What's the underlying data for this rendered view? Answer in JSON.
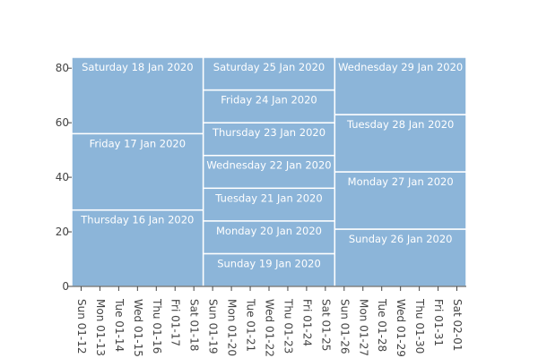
{
  "chart_data": {
    "type": "bar",
    "stacked": true,
    "grid": false,
    "categories": [
      "Sun 01-12",
      "Mon 01-13",
      "Tue 01-14",
      "Wed 01-15",
      "Thu 01-16",
      "Fri 01-17",
      "Sat 01-18",
      "Sun 01-19",
      "Mon 01-20",
      "Tue 01-21",
      "Wed 01-22",
      "Thu 01-23",
      "Fri 01-24",
      "Sat 01-25",
      "Sun 01-26",
      "Mon 01-27",
      "Tue 01-28",
      "Wed 01-29",
      "Thu 01-30",
      "Fri 01-31",
      "Sat 02-01"
    ],
    "ylim": [
      0,
      84
    ],
    "y_ticks": [
      0,
      20,
      40,
      60,
      80
    ],
    "bar_color": "#8cb5d9",
    "bars": [
      {
        "span": [
          "Sun 01-12",
          "Sat 01-18"
        ],
        "segments": [
          {
            "label": "Thursday 16 Jan 2020",
            "value": 28
          },
          {
            "label": "Friday 17 Jan 2020",
            "value": 28
          },
          {
            "label": "Saturday 18 Jan 2020",
            "value": 28
          }
        ]
      },
      {
        "span": [
          "Sun 01-19",
          "Sat 01-25"
        ],
        "segments": [
          {
            "label": "Sunday 19 Jan 2020",
            "value": 12
          },
          {
            "label": "Monday 20 Jan 2020",
            "value": 12
          },
          {
            "label": "Tuesday 21 Jan 2020",
            "value": 12
          },
          {
            "label": "Wednesday 22 Jan 2020",
            "value": 12
          },
          {
            "label": "Thursday 23 Jan 2020",
            "value": 12
          },
          {
            "label": "Friday 24 Jan 2020",
            "value": 12
          },
          {
            "label": "Saturday 25 Jan 2020",
            "value": 12
          }
        ]
      },
      {
        "span": [
          "Sun 01-26",
          "Sat 02-01"
        ],
        "segments": [
          {
            "label": "Sunday 26 Jan 2020",
            "value": 21
          },
          {
            "label": "Monday 27 Jan 2020",
            "value": 21
          },
          {
            "label": "Tuesday 28 Jan 2020",
            "value": 21
          },
          {
            "label": "Wednesday 29 Jan 2020",
            "value": 21
          }
        ]
      }
    ]
  }
}
